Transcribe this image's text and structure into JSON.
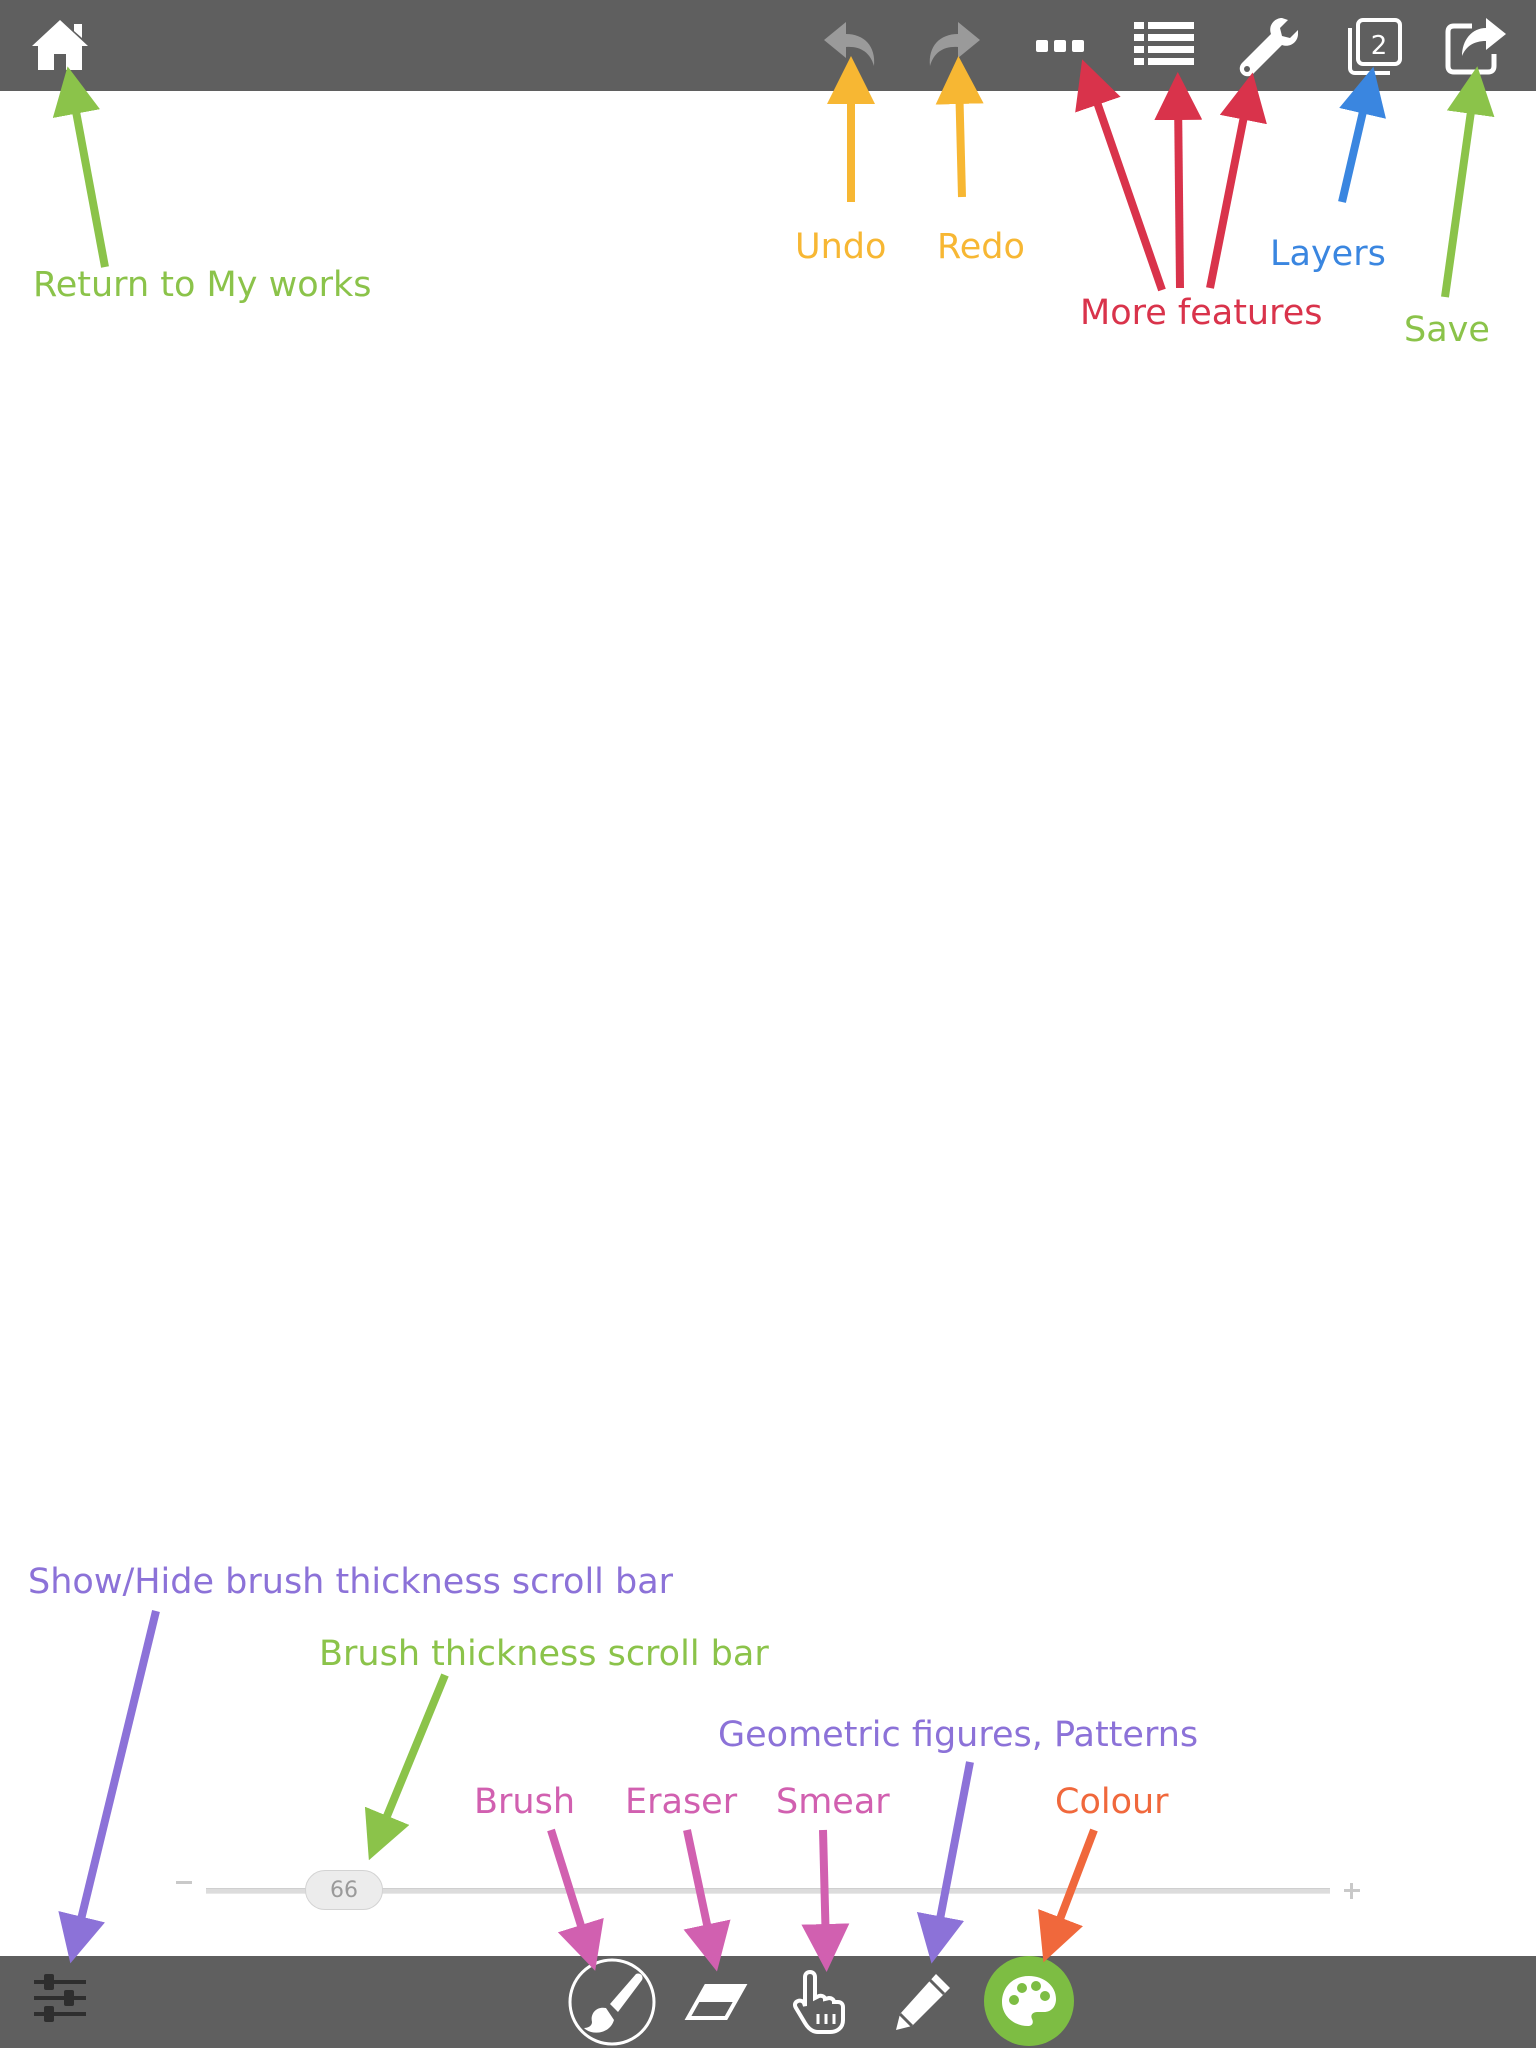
{
  "toolbar": {
    "home_icon": "home-icon",
    "undo_icon": "undo-icon",
    "redo_icon": "redo-icon",
    "more_icon": "ellipsis-icon",
    "list_icon": "list-icon",
    "wrench_icon": "wrench-icon",
    "layers_icon": "layers-icon",
    "layers_count": "2",
    "save_icon": "share-icon"
  },
  "bottom_toolbar": {
    "settings_icon": "sliders-icon",
    "brush_icon": "brush-icon",
    "eraser_icon": "eraser-icon",
    "smear_icon": "hand-pointer-icon",
    "shapes_icon": "pencil-icon",
    "colour_icon": "palette-icon",
    "colour_accent": "#7dbd43"
  },
  "slider": {
    "value": "66",
    "value_fraction": 0.12
  },
  "annotations": {
    "return": "Return to My works",
    "undo": "Undo",
    "redo": "Redo",
    "more": "More features",
    "layers": "Layers",
    "save": "Save",
    "show_hide": "Show/Hide brush thickness scroll bar",
    "thickness": "Brush thickness scroll bar",
    "geometric": "Geometric figures, Patterns",
    "brush": "Brush",
    "eraser": "Eraser",
    "smear": "Smear",
    "colour": "Colour"
  },
  "colors": {
    "bar": "#5f5f5f",
    "green": "#8bc34a",
    "yellow": "#f7b733",
    "red": "#d9334b",
    "blue": "#3a86e0",
    "purple": "#8c72d8",
    "pink": "#d160b0",
    "orange": "#f0683c"
  }
}
